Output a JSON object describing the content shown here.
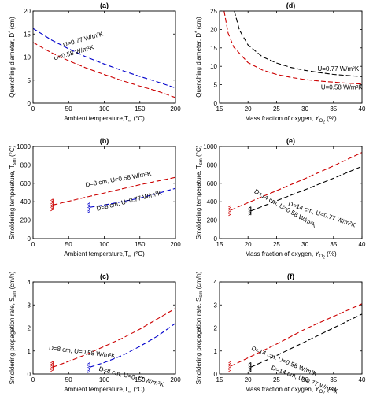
{
  "chart_data": [
    {
      "type": "line",
      "panel_label": "(a)",
      "xlabel": "Ambient temperature,T",
      "xlabel_sub": "∞",
      "xlabel_unit": " (°C)",
      "ylabel": "Quenching diameter, D",
      "ylabel_sup": "*",
      "ylabel_unit": " (cm)",
      "xlim": [
        0,
        200
      ],
      "ylim": [
        0,
        20
      ],
      "xticks": [
        0,
        50,
        100,
        150,
        200
      ],
      "yticks": [
        0,
        5,
        10,
        15,
        20
      ],
      "series": [
        {
          "name": "U=0.77 W/m²K",
          "color": "#0000cc",
          "x": [
            0,
            25,
            50,
            75,
            100,
            125,
            150,
            175,
            200
          ],
          "y": [
            16.2,
            13.8,
            11.8,
            10.0,
            8.5,
            7.1,
            5.8,
            4.6,
            3.3
          ]
        },
        {
          "name": "U=0.58 W/m²K",
          "color": "#cc0000",
          "x": [
            0,
            25,
            50,
            75,
            100,
            125,
            150,
            175,
            200
          ],
          "y": [
            13.2,
            11.0,
            9.2,
            7.6,
            6.2,
            4.9,
            3.7,
            2.6,
            1.2
          ]
        }
      ],
      "annotations": [
        {
          "text": "U=0.77 W/m²K",
          "color": "#0000cc",
          "x": 43,
          "y": 12.2,
          "angle": 16
        },
        {
          "text": "U=0.58 W/m²K",
          "color": "#cc0000",
          "x": 30,
          "y": 9.3,
          "angle": 16
        }
      ]
    },
    {
      "type": "line",
      "panel_label": "(d)",
      "xlabel": "Mass fraction of oxygen,",
      "xlabel_italic": "Y",
      "xlabel_sub": "O2",
      "xlabel_unit": " (%)",
      "ylabel": "Quenching diameter, D",
      "ylabel_sup": "*",
      "ylabel_unit": " (cm)",
      "xlim": [
        15,
        40
      ],
      "ylim": [
        0,
        25
      ],
      "xticks": [
        15,
        20,
        25,
        30,
        35,
        40
      ],
      "yticks": [
        0,
        5,
        10,
        15,
        20,
        25
      ],
      "series": [
        {
          "name": "U=0.77 W/m²K",
          "color": "#000000",
          "x": [
            17.6,
            18.5,
            20,
            22.5,
            25,
            27.5,
            30,
            32.5,
            35,
            37.5,
            40
          ],
          "y": [
            25,
            19.8,
            15.8,
            12.6,
            10.9,
            9.7,
            8.9,
            8.3,
            7.8,
            7.5,
            7.2
          ]
        },
        {
          "name": "U=0.58 W/m²K",
          "color": "#cc0000",
          "x": [
            15.8,
            16.5,
            17.5,
            20,
            22.5,
            25,
            27.5,
            30,
            32.5,
            35,
            37.5,
            40
          ],
          "y": [
            25,
            19.0,
            15.2,
            11.0,
            9.0,
            7.8,
            7.0,
            6.4,
            6.0,
            5.7,
            5.4,
            5.2
          ]
        }
      ],
      "annotations": [
        {
          "text": "U=0.77 W/m²K",
          "color": "#000000",
          "x": 32.2,
          "y": 8.8,
          "angle": 0
        },
        {
          "text": "U=0.58 W/m²K",
          "color": "#cc0000",
          "x": 32.8,
          "y": 3.7,
          "angle": 0
        }
      ]
    },
    {
      "type": "line",
      "panel_label": "(b)",
      "xlabel": "Ambient temperature,T",
      "xlabel_sub": "∞",
      "xlabel_unit": " (°C)",
      "ylabel": "Smoldering temperature, T",
      "ylabel_sub": "sm",
      "ylabel_unit": " (°C)",
      "xlim": [
        0,
        200
      ],
      "ylim": [
        0,
        1000
      ],
      "xticks": [
        0,
        50,
        100,
        150,
        200
      ],
      "yticks": [
        0,
        200,
        400,
        600,
        800,
        1000
      ],
      "series": [
        {
          "name": "D=8 cm, U=0.58 W/m²K",
          "color": "#cc0000",
          "x": [
            28,
            50,
            75,
            100,
            125,
            150,
            175,
            200
          ],
          "y": [
            365,
            405,
            450,
            495,
            540,
            585,
            625,
            665
          ]
        },
        {
          "name": "D=8 cm, U=0.77 W/m²K",
          "color": "#0000cc",
          "x": [
            80,
            100,
            125,
            150,
            175,
            200
          ],
          "y": [
            340,
            365,
            400,
            440,
            490,
            545
          ]
        }
      ],
      "hatches": [
        {
          "x": 28,
          "y0": 310,
          "y1": 430,
          "color": "#cc0000"
        },
        {
          "x": 80,
          "y0": 290,
          "y1": 390,
          "color": "#0000cc"
        }
      ],
      "annotations": [
        {
          "text": "D=8 cm, U=0.58 W/m²K",
          "color": "#cc0000",
          "x": 74,
          "y": 560,
          "angle": 10
        },
        {
          "text": "D=8 cm, U=0.77 W/m²K",
          "color": "#0000cc",
          "x": 90,
          "y": 300,
          "angle": 14
        }
      ]
    },
    {
      "type": "line",
      "panel_label": "(e)",
      "xlabel": "Mass fraction of oxygen,",
      "xlabel_italic": "Y",
      "xlabel_sub": "O2",
      "xlabel_unit": " (%)",
      "ylabel": "Smoldering temperature, T",
      "ylabel_sub": "sm",
      "ylabel_unit": " (°C)",
      "xlim": [
        15,
        40
      ],
      "ylim": [
        0,
        1000
      ],
      "xticks": [
        15,
        20,
        25,
        30,
        35,
        40
      ],
      "yticks": [
        0,
        200,
        400,
        600,
        800,
        1000
      ],
      "series": [
        {
          "name": "D=14 cm, U=0.58 W/m²K",
          "color": "#cc0000",
          "x": [
            17,
            20,
            25,
            30,
            35,
            40
          ],
          "y": [
            310,
            390,
            520,
            650,
            790,
            935
          ]
        },
        {
          "name": "D=14 cm, U=0.77 W/m²K",
          "color": "#000000",
          "x": [
            20.5,
            25,
            30,
            35,
            40
          ],
          "y": [
            300,
            410,
            530,
            655,
            785
          ]
        }
      ],
      "hatches": [
        {
          "x": 17,
          "y0": 260,
          "y1": 360,
          "color": "#cc0000"
        },
        {
          "x": 20.5,
          "y0": 255,
          "y1": 345,
          "color": "#000000"
        }
      ],
      "annotations": [
        {
          "text": "D=14 cm, U=0.58 W/m²K",
          "color": "#cc0000",
          "x": 21,
          "y": 500,
          "angle": -30
        },
        {
          "text": "D=14 cm, U=0.77 W/m²K",
          "color": "#000000",
          "x": 27,
          "y": 360,
          "angle": -18
        }
      ]
    },
    {
      "type": "line",
      "panel_label": "(c)",
      "xlabel": "Ambient temperature,T",
      "xlabel_sub": "∞",
      "xlabel_unit": " (°C)",
      "ylabel": "Smoldering propagation rate, S",
      "ylabel_sub": "sm",
      "ylabel_unit": " (cm/h)",
      "xlim": [
        0,
        200
      ],
      "ylim": [
        0,
        4
      ],
      "xticks": [
        0,
        50,
        100,
        150,
        200
      ],
      "yticks": [
        0,
        1,
        2,
        3,
        4
      ],
      "series": [
        {
          "name": "D=8 cm, U=0.58 W/m²K",
          "color": "#cc0000",
          "x": [
            28,
            50,
            75,
            100,
            125,
            150,
            175,
            200
          ],
          "y": [
            0.3,
            0.55,
            0.85,
            1.2,
            1.55,
            1.95,
            2.4,
            2.85
          ]
        },
        {
          "name": "D=8 cm, U=0.77 W/m²K",
          "color": "#0000cc",
          "x": [
            80,
            100,
            125,
            150,
            175,
            200
          ],
          "y": [
            0.3,
            0.5,
            0.8,
            1.2,
            1.65,
            2.2
          ]
        }
      ],
      "hatches": [
        {
          "x": 28,
          "y0": 0.15,
          "y1": 0.55,
          "color": "#cc0000"
        },
        {
          "x": 80,
          "y0": 0.1,
          "y1": 0.5,
          "color": "#0000cc"
        }
      ],
      "annotations": [
        {
          "text": "D=8 cm, U=0.58 W/m²K",
          "color": "#cc0000",
          "x": 22,
          "y": 1.05,
          "angle": -7
        },
        {
          "text": "D=8 cm, U=0.77 W/m²K",
          "color": "#0000cc",
          "x": 92,
          "y": 0.15,
          "angle": -14
        }
      ]
    },
    {
      "type": "line",
      "panel_label": "(f)",
      "xlabel": "Mass fraction of oxygen,",
      "xlabel_italic": "Y",
      "xlabel_sub": "O2",
      "xlabel_unit": " (%)",
      "ylabel": "Smoldering propagation rate, S",
      "ylabel_sub": "sm",
      "ylabel_unit": " (cm/h)",
      "xlim": [
        15,
        40
      ],
      "ylim": [
        0,
        4
      ],
      "xticks": [
        15,
        20,
        25,
        30,
        35,
        40
      ],
      "yticks": [
        0,
        1,
        2,
        3,
        4
      ],
      "series": [
        {
          "name": "D=14 cm, U=0.58 W/m²K",
          "color": "#cc0000",
          "x": [
            17,
            20,
            25,
            30,
            35,
            40
          ],
          "y": [
            0.35,
            0.7,
            1.3,
            1.95,
            2.5,
            3.05
          ]
        },
        {
          "name": "D=14 cm, U=0.77 W/m²K",
          "color": "#000000",
          "x": [
            20.5,
            25,
            30,
            35,
            40
          ],
          "y": [
            0.3,
            0.8,
            1.4,
            2.0,
            2.6
          ]
        }
      ],
      "hatches": [
        {
          "x": 17,
          "y0": 0.15,
          "y1": 0.55,
          "color": "#cc0000"
        },
        {
          "x": 20.5,
          "y0": 0.1,
          "y1": 0.5,
          "color": "#000000"
        }
      ],
      "annotations": [
        {
          "text": "D=14 cm, U=0.58 W/m²K",
          "color": "#cc0000",
          "x": 20.5,
          "y": 1.05,
          "angle": -22
        },
        {
          "text": "D=14 cm, U=0.77 W/m²K",
          "color": "#000000",
          "x": 24,
          "y": 0.2,
          "angle": -20
        }
      ]
    }
  ]
}
